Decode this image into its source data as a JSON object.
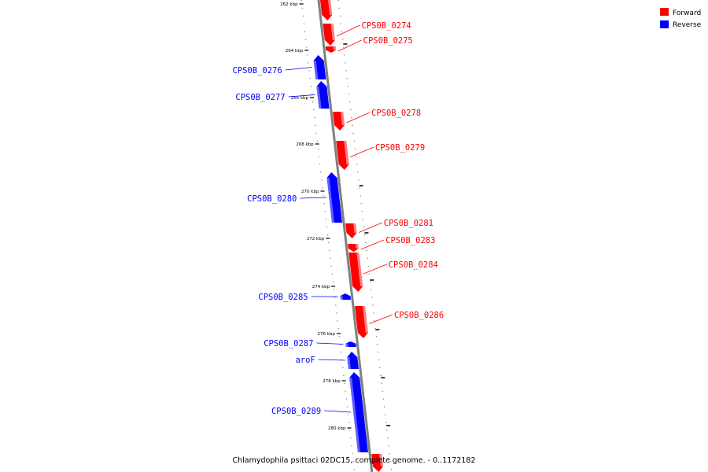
{
  "colors": {
    "forward": "#ff0000",
    "forward_light": "#ff8080",
    "reverse": "#0000ff",
    "reverse_light": "#6060ff",
    "backbone": "#808080",
    "tick": "#000000"
  },
  "legend": [
    {
      "label": "Forward",
      "strand": "forward"
    },
    {
      "label": "Reverse",
      "strand": "reverse"
    }
  ],
  "ticks": [
    "262 kbp",
    "264 kbp",
    "266 kbp",
    "268 kbp",
    "270 kbp",
    "272 kbp",
    "274 kbp",
    "276 kbp",
    "278 kbp",
    "280 kbp"
  ],
  "genes": [
    {
      "name": "",
      "strand": "forward"
    },
    {
      "name": "CPS0B_0274",
      "strand": "forward"
    },
    {
      "name": "CPS0B_0275",
      "strand": "forward"
    },
    {
      "name": "CPS0B_0276",
      "strand": "reverse"
    },
    {
      "name": "CPS0B_0277",
      "strand": "reverse"
    },
    {
      "name": "CPS0B_0278",
      "strand": "forward"
    },
    {
      "name": "CPS0B_0279",
      "strand": "forward"
    },
    {
      "name": "CPS0B_0280",
      "strand": "reverse"
    },
    {
      "name": "CPS0B_0281",
      "strand": "forward"
    },
    {
      "name": "CPS0B_0283",
      "strand": "forward"
    },
    {
      "name": "CPS0B_0284",
      "strand": "forward"
    },
    {
      "name": "CPS0B_0285",
      "strand": "reverse"
    },
    {
      "name": "CPS0B_0286",
      "strand": "forward"
    },
    {
      "name": "CPS0B_0287",
      "strand": "reverse"
    },
    {
      "name": "aroF",
      "strand": "reverse"
    },
    {
      "name": "CPS0B_0289",
      "strand": "reverse"
    },
    {
      "name": "",
      "strand": "forward"
    }
  ],
  "footer": "Chlamydophila psittaci 02DC15, complete genome. - 0..1172182"
}
